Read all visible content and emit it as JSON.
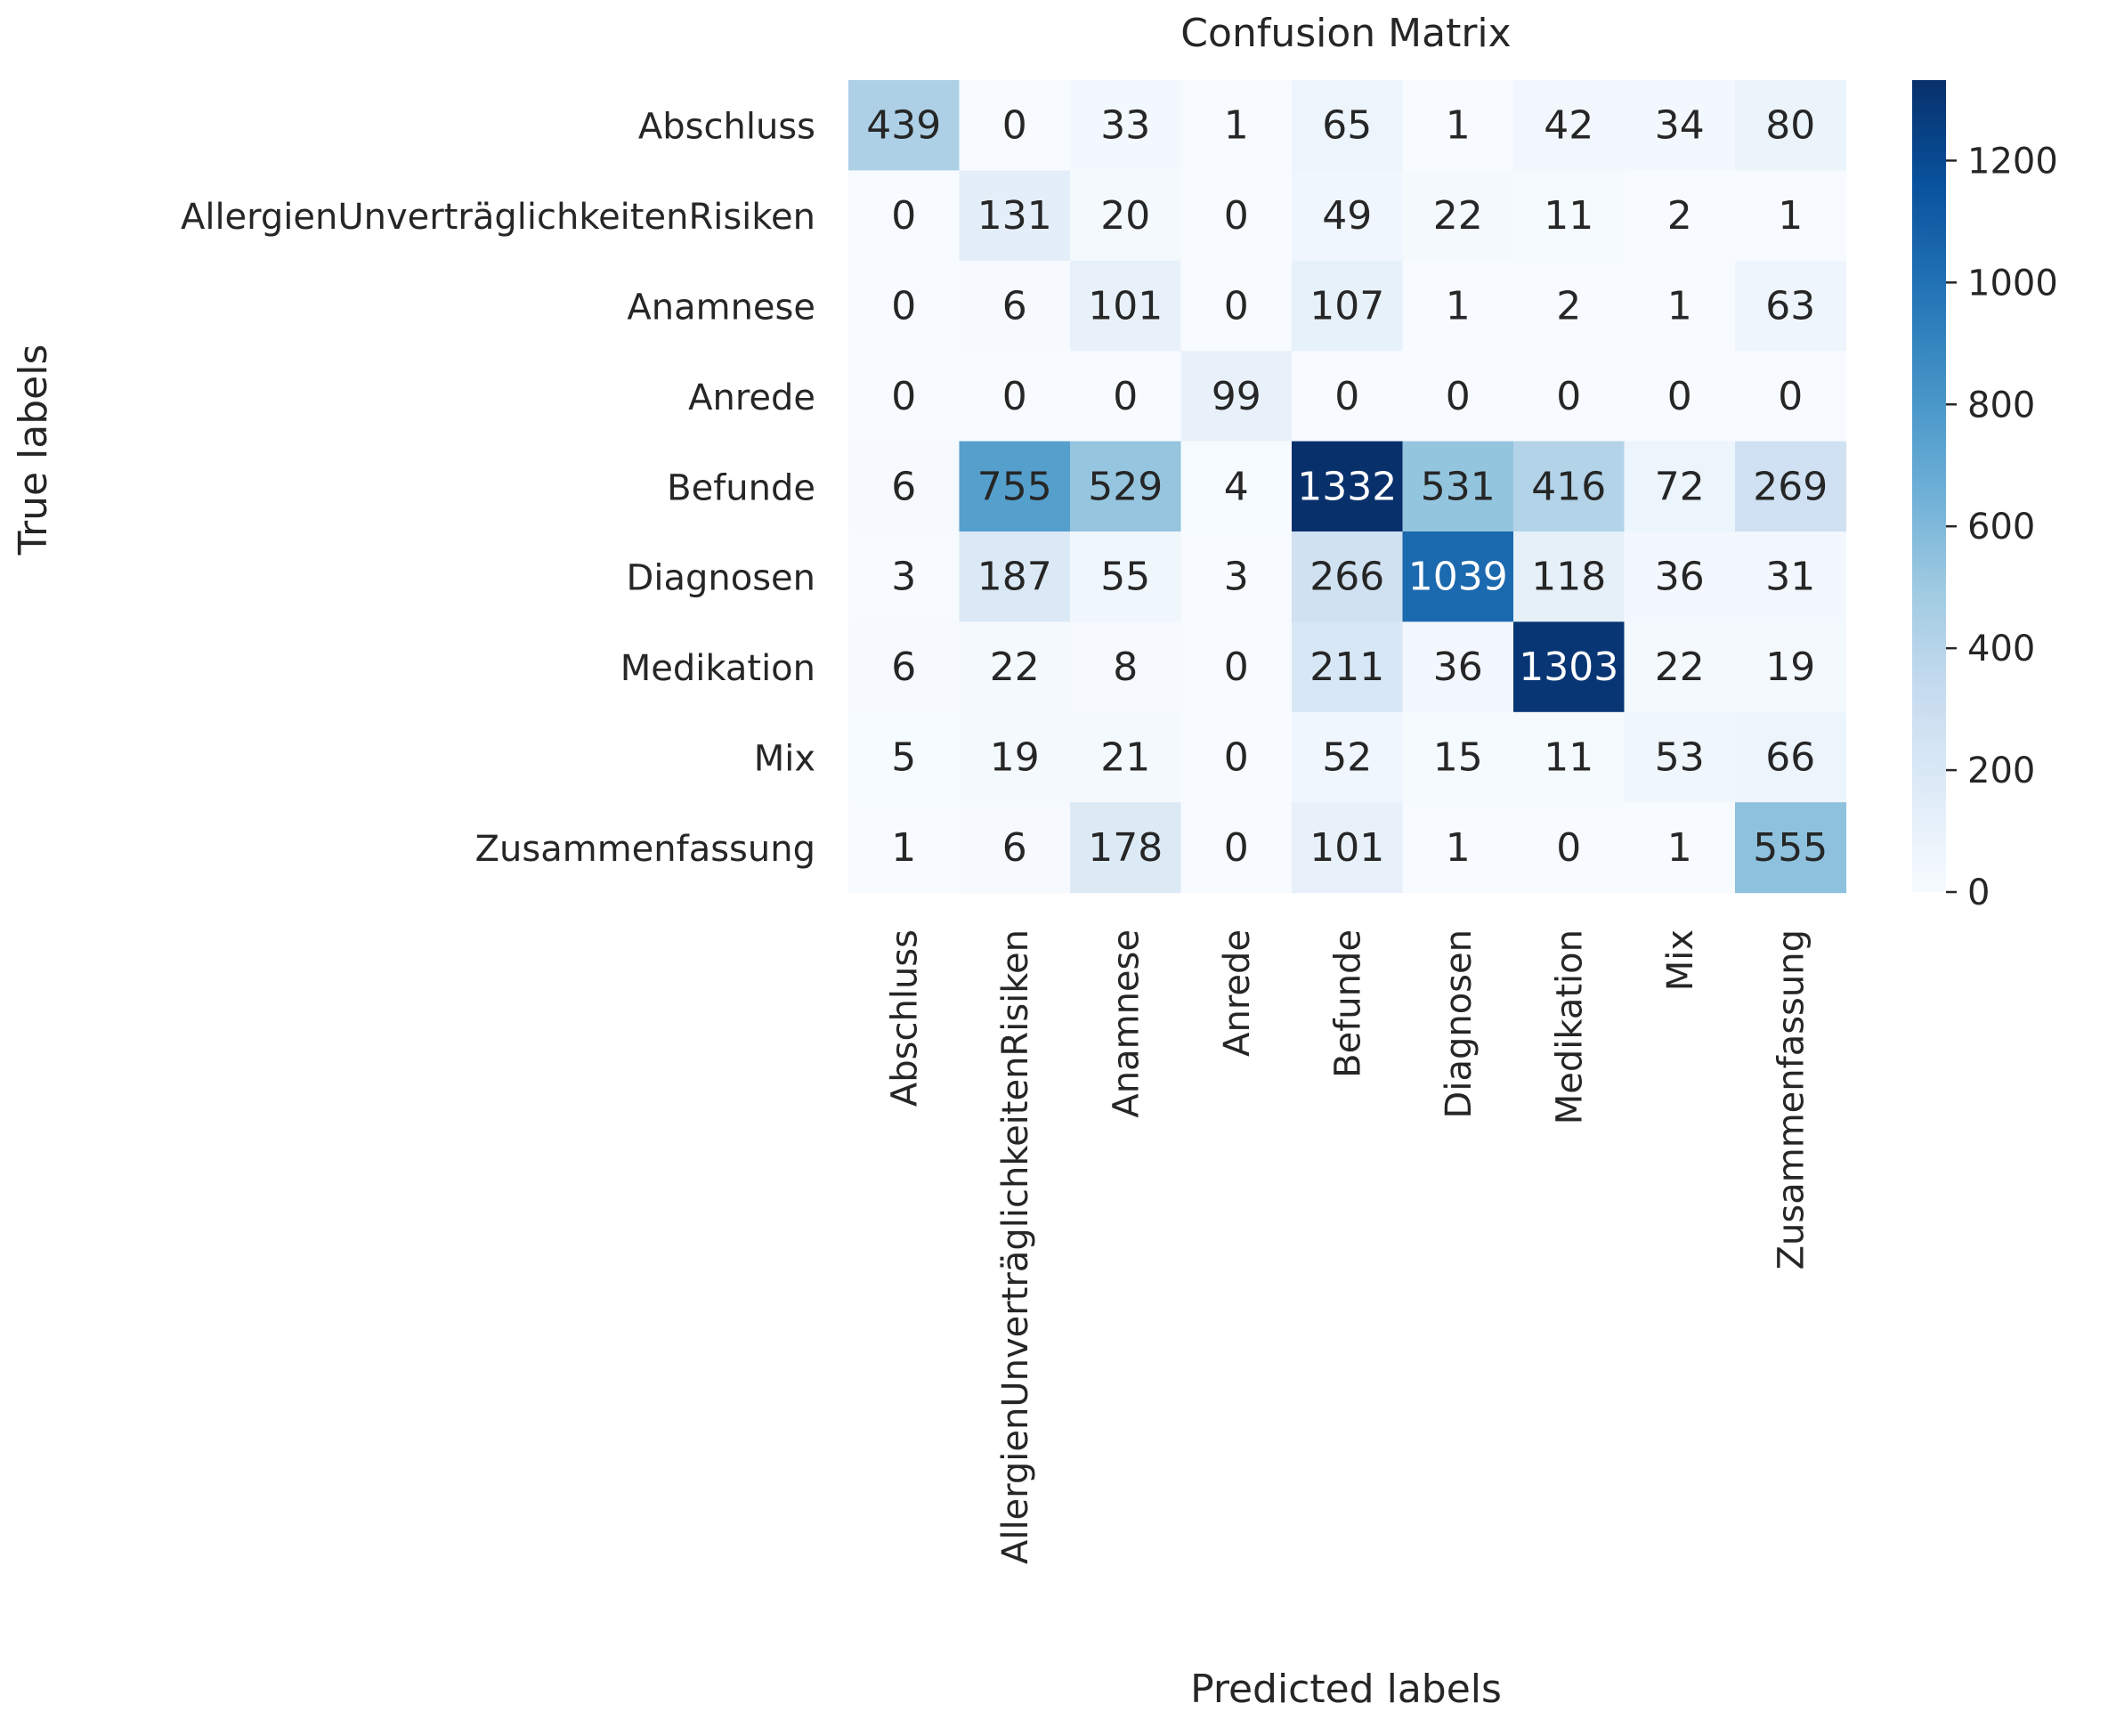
{
  "chart_data": {
    "type": "heatmap",
    "title": "Confusion Matrix",
    "xlabel": "Predicted labels",
    "ylabel": "True labels",
    "row_labels": [
      "Abschluss",
      "AllergienUnverträglichkeitenRisiken",
      "Anamnese",
      "Anrede",
      "Befunde",
      "Diagnosen",
      "Medikation",
      "Mix",
      "Zusammenfassung"
    ],
    "col_labels": [
      "Abschluss",
      "AllergienUnverträglichkeitenRisiken",
      "Anamnese",
      "Anrede",
      "Befunde",
      "Diagnosen",
      "Medikation",
      "Mix",
      "Zusammenfassung"
    ],
    "values": [
      [
        439,
        0,
        33,
        1,
        65,
        1,
        42,
        34,
        80
      ],
      [
        0,
        131,
        20,
        0,
        49,
        22,
        11,
        2,
        1
      ],
      [
        0,
        6,
        101,
        0,
        107,
        1,
        2,
        1,
        63
      ],
      [
        0,
        0,
        0,
        99,
        0,
        0,
        0,
        0,
        0
      ],
      [
        6,
        755,
        529,
        4,
        1332,
        531,
        416,
        72,
        269
      ],
      [
        3,
        187,
        55,
        3,
        266,
        1039,
        118,
        36,
        31
      ],
      [
        6,
        22,
        8,
        0,
        211,
        36,
        1303,
        22,
        19
      ],
      [
        5,
        19,
        21,
        0,
        52,
        15,
        11,
        53,
        66
      ],
      [
        1,
        6,
        178,
        0,
        101,
        1,
        0,
        1,
        555
      ]
    ],
    "colormap": "Blues",
    "vmin": 0,
    "vmax": 1332,
    "colorbar_ticks": [
      0,
      200,
      400,
      600,
      800,
      1000,
      1200
    ]
  }
}
